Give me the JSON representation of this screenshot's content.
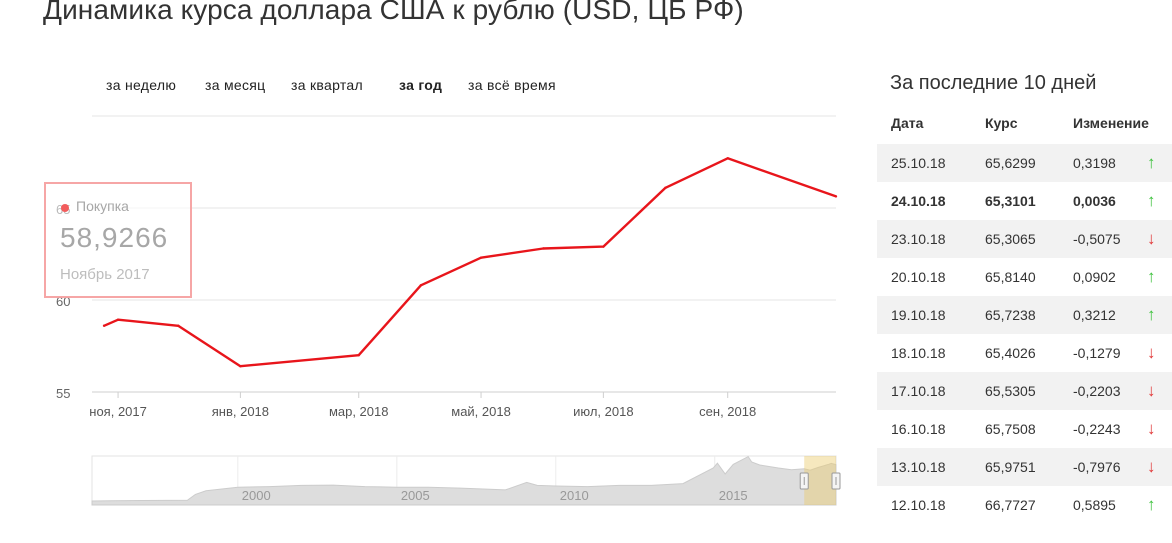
{
  "page": {
    "title": "Динамика курса доллара США к рублю (USD, ЦБ РФ)"
  },
  "periods": [
    {
      "label": "за неделю",
      "active": false
    },
    {
      "label": "за месяц",
      "active": false
    },
    {
      "label": "за квартал",
      "active": false
    },
    {
      "label": "за год",
      "active": true
    },
    {
      "label": "за всё время",
      "active": false
    }
  ],
  "tooltip": {
    "series": "Покупка",
    "value": "58,9266",
    "date": "Ноябрь 2017"
  },
  "chart_data": [
    {
      "type": "line",
      "series": [
        {
          "name": "Покупка",
          "color": "#e8151b",
          "points": [
            [
              "2017-10-25",
              58.6
            ],
            [
              "2017-11-01",
              58.93
            ],
            [
              "2017-12-01",
              58.6
            ],
            [
              "2018-01-01",
              56.4
            ],
            [
              "2018-03-01",
              57.0
            ],
            [
              "2018-04-01",
              60.8
            ],
            [
              "2018-05-01",
              62.3
            ],
            [
              "2018-06-01",
              62.8
            ],
            [
              "2018-07-01",
              62.9
            ],
            [
              "2018-08-01",
              66.1
            ],
            [
              "2018-09-01",
              67.7
            ],
            [
              "2018-10-25",
              65.63
            ]
          ]
        }
      ],
      "yticks": [
        "55",
        "60",
        "65"
      ],
      "ylim": [
        55,
        68
      ],
      "xticks": [
        {
          "date": "2017-11-01",
          "label": "ноя, 2017"
        },
        {
          "date": "2018-01-01",
          "label": "янв, 2018"
        },
        {
          "date": "2018-03-01",
          "label": "мар, 2018"
        },
        {
          "date": "2018-05-01",
          "label": "май, 2018"
        },
        {
          "date": "2018-07-01",
          "label": "июл, 2018"
        },
        {
          "date": "2018-09-01",
          "label": "сен, 2018"
        }
      ],
      "grid": true
    },
    {
      "type": "area",
      "role": "navigator",
      "color": "#dddddd",
      "xlim": [
        "1995-06-01",
        "2018-10-25"
      ],
      "series": [
        {
          "points": [
            [
              "1995-06-01",
              5.0
            ],
            [
              "1996-01-01",
              5.5
            ],
            [
              "1997-01-01",
              5.8
            ],
            [
              "1998-06-01",
              6.2
            ],
            [
              "1998-09-01",
              16.0
            ],
            [
              "1999-01-01",
              22.0
            ],
            [
              "2000-01-01",
              28.0
            ],
            [
              "2001-01-01",
              29.0
            ],
            [
              "2002-01-01",
              31.0
            ],
            [
              "2003-01-01",
              31.5
            ],
            [
              "2004-01-01",
              29.0
            ],
            [
              "2005-01-01",
              28.0
            ],
            [
              "2006-01-01",
              28.0
            ],
            [
              "2007-01-01",
              26.5
            ],
            [
              "2008-06-01",
              23.5
            ],
            [
              "2009-02-01",
              36.0
            ],
            [
              "2009-06-01",
              31.0
            ],
            [
              "2010-01-01",
              30.0
            ],
            [
              "2011-01-01",
              29.0
            ],
            [
              "2012-01-01",
              31.0
            ],
            [
              "2013-01-01",
              31.0
            ],
            [
              "2014-01-01",
              34.0
            ],
            [
              "2014-12-15",
              60.0
            ],
            [
              "2015-02-01",
              68.0
            ],
            [
              "2015-05-01",
              50.0
            ],
            [
              "2015-08-01",
              66.0
            ],
            [
              "2016-01-20",
              79.0
            ],
            [
              "2016-03-01",
              70.0
            ],
            [
              "2016-06-01",
              65.0
            ],
            [
              "2017-01-01",
              60.0
            ],
            [
              "2017-06-01",
              57.0
            ],
            [
              "2017-10-25",
              58.6
            ],
            [
              "2018-01-01",
              56.4
            ],
            [
              "2018-04-01",
              60.8
            ],
            [
              "2018-08-01",
              66.1
            ],
            [
              "2018-09-01",
              67.7
            ],
            [
              "2018-10-25",
              65.63
            ]
          ]
        }
      ],
      "xticks": [
        {
          "date": "2000-01-01",
          "label": "2000"
        },
        {
          "date": "2005-01-01",
          "label": "2005"
        },
        {
          "date": "2010-01-01",
          "label": "2010"
        },
        {
          "date": "2015-01-01",
          "label": "2015"
        }
      ],
      "selection": [
        "2017-10-25",
        "2018-10-25"
      ]
    },
    {
      "type": "table",
      "title": "За последние 10 дней",
      "columns": [
        "Дата",
        "Курс",
        "Изменение"
      ],
      "rows": [
        {
          "date": "25.10.18",
          "rate": "65,6299",
          "change": "0,3198",
          "direction": "up",
          "bold": false
        },
        {
          "date": "24.10.18",
          "rate": "65,3101",
          "change": "0,0036",
          "direction": "up",
          "bold": true
        },
        {
          "date": "23.10.18",
          "rate": "65,3065",
          "change": "-0,5075",
          "direction": "down",
          "bold": false
        },
        {
          "date": "20.10.18",
          "rate": "65,8140",
          "change": "0,0902",
          "direction": "up",
          "bold": false
        },
        {
          "date": "19.10.18",
          "rate": "65,7238",
          "change": "0,3212",
          "direction": "up",
          "bold": false
        },
        {
          "date": "18.10.18",
          "rate": "65,4026",
          "change": "-0,1279",
          "direction": "down",
          "bold": false
        },
        {
          "date": "17.10.18",
          "rate": "65,5305",
          "change": "-0,2203",
          "direction": "down",
          "bold": false
        },
        {
          "date": "16.10.18",
          "rate": "65,7508",
          "change": "-0,2243",
          "direction": "down",
          "bold": false
        },
        {
          "date": "13.10.18",
          "rate": "65,9751",
          "change": "-0,7976",
          "direction": "down",
          "bold": false
        },
        {
          "date": "12.10.18",
          "rate": "66,7727",
          "change": "0,5895",
          "direction": "up",
          "bold": false
        }
      ]
    }
  ],
  "icons": {
    "up": "arrow-up-icon",
    "down": "arrow-down-icon",
    "up_glyph": "↑",
    "down_glyph": "↓",
    "up_color": "#3cc13c",
    "down_color": "#e13838"
  }
}
